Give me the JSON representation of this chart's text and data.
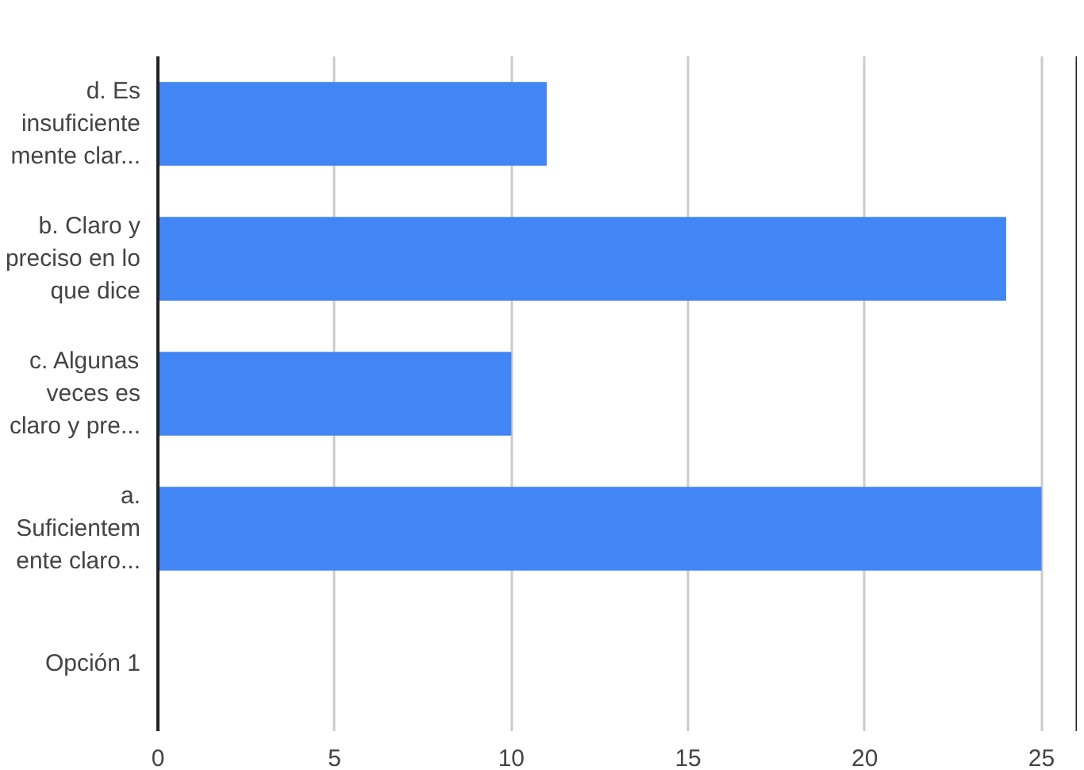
{
  "chart_data": {
    "type": "bar",
    "orientation": "horizontal",
    "categories": [
      "d. Es\ninsuficiente\nmente clar...",
      "b. Claro y\npreciso en lo\nque dice",
      "c. Algunas\nveces es\nclaro y pre...",
      "a.\nSuficientem\nente claro...",
      "Opción 1"
    ],
    "values": [
      11,
      24,
      10,
      25,
      0
    ],
    "color": "#4285f4",
    "xlim": [
      0,
      26
    ],
    "xticks": [
      0,
      5,
      10,
      15,
      20,
      25
    ],
    "grid": "x"
  }
}
